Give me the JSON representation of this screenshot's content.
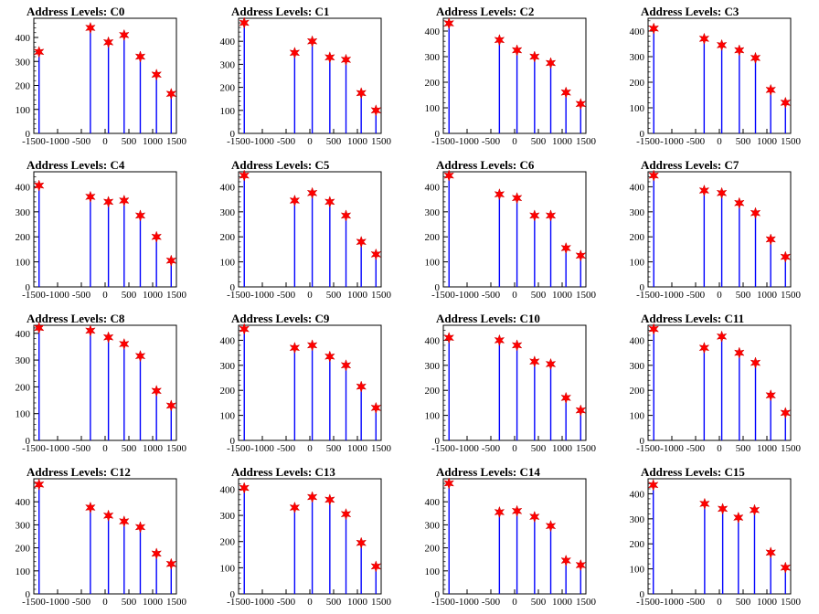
{
  "chart_data": [
    {
      "type": "bar",
      "title": "Address Levels: C0",
      "ylim": [
        0,
        480
      ],
      "yticks": [
        0,
        100,
        200,
        300,
        400
      ],
      "xlim": [
        -1500,
        1500
      ],
      "xticks": [
        -1500,
        -1000,
        -500,
        0,
        500,
        1000,
        1500
      ],
      "xtick_labels": [
        "-1500",
        "-1000",
        "-500",
        "0",
        "500",
        "1000",
        "1500"
      ],
      "x": [
        -1390,
        -310,
        70,
        400,
        740,
        1080,
        1390
      ],
      "peaks": [
        340,
        440,
        380,
        410,
        320,
        245,
        165
      ]
    },
    {
      "type": "bar",
      "title": "Address Levels: C1",
      "ylim": [
        0,
        500
      ],
      "yticks": [
        0,
        100,
        200,
        300,
        400
      ],
      "xlim": [
        -1500,
        1500
      ],
      "xticks": [
        -1500,
        -1000,
        -500,
        0,
        500,
        1000,
        1500
      ],
      "xtick_labels": [
        "-1500",
        "-1000",
        "-500",
        "0",
        "500",
        "1000",
        "1500"
      ],
      "x": [
        -1380,
        -320,
        50,
        420,
        760,
        1080,
        1390
      ],
      "peaks": [
        480,
        350,
        400,
        330,
        320,
        175,
        100
      ]
    },
    {
      "type": "bar",
      "title": "Address Levels: C2",
      "ylim": [
        0,
        450
      ],
      "yticks": [
        0,
        100,
        200,
        300,
        400
      ],
      "xlim": [
        -1500,
        1500
      ],
      "xticks": [
        -1500,
        -1000,
        -500,
        0,
        500,
        1000,
        1500
      ],
      "xtick_labels": [
        "-1500",
        "-1000",
        "-500",
        "0",
        "500",
        "1000",
        "1500"
      ],
      "x": [
        -1380,
        -320,
        50,
        420,
        760,
        1080,
        1390
      ],
      "peaks": [
        430,
        365,
        325,
        300,
        275,
        160,
        115
      ]
    },
    {
      "type": "bar",
      "title": "Address Levels: C3",
      "ylim": [
        0,
        450
      ],
      "yticks": [
        0,
        100,
        200,
        300,
        400
      ],
      "xlim": [
        -1500,
        1500
      ],
      "xticks": [
        -1500,
        -1000,
        -500,
        0,
        500,
        1000,
        1500
      ],
      "xtick_labels": [
        "-1500",
        "-1000",
        "-500",
        "0",
        "500",
        "1000",
        "1500"
      ],
      "x": [
        -1380,
        -320,
        50,
        420,
        760,
        1080,
        1390
      ],
      "peaks": [
        410,
        370,
        345,
        325,
        295,
        170,
        120
      ]
    },
    {
      "type": "bar",
      "title": "Address Levels: C4",
      "ylim": [
        0,
        460
      ],
      "yticks": [
        0,
        100,
        200,
        300,
        400
      ],
      "xlim": [
        -1500,
        1500
      ],
      "xticks": [
        -1500,
        -1000,
        -500,
        0,
        500,
        1000,
        1500
      ],
      "xtick_labels": [
        "-1500",
        "-1000",
        "-500",
        "0",
        "500",
        "1000",
        "1500"
      ],
      "x": [
        -1390,
        -310,
        70,
        400,
        740,
        1080,
        1390
      ],
      "peaks": [
        405,
        360,
        340,
        345,
        285,
        200,
        105
      ]
    },
    {
      "type": "bar",
      "title": "Address Levels: C5",
      "ylim": [
        0,
        460
      ],
      "yticks": [
        0,
        100,
        200,
        300,
        400
      ],
      "xlim": [
        -1500,
        1500
      ],
      "xticks": [
        -1500,
        -1000,
        -500,
        0,
        500,
        1000,
        1500
      ],
      "xtick_labels": [
        "-1500",
        "-1000",
        "-500",
        "0",
        "500",
        "1000",
        "1500"
      ],
      "x": [
        -1380,
        -320,
        50,
        420,
        760,
        1080,
        1390
      ],
      "peaks": [
        445,
        345,
        375,
        340,
        285,
        180,
        130
      ]
    },
    {
      "type": "bar",
      "title": "Address Levels: C6",
      "ylim": [
        0,
        460
      ],
      "yticks": [
        0,
        100,
        200,
        300,
        400
      ],
      "xlim": [
        -1500,
        1500
      ],
      "xticks": [
        -1500,
        -1000,
        -500,
        0,
        500,
        1000,
        1500
      ],
      "xtick_labels": [
        "-1500",
        "-1000",
        "-500",
        "0",
        "500",
        "1000",
        "1500"
      ],
      "x": [
        -1380,
        -320,
        50,
        420,
        760,
        1080,
        1390
      ],
      "peaks": [
        445,
        370,
        355,
        285,
        285,
        155,
        125
      ]
    },
    {
      "type": "bar",
      "title": "Address Levels: C7",
      "ylim": [
        0,
        460
      ],
      "yticks": [
        0,
        100,
        200,
        300,
        400
      ],
      "xlim": [
        -1500,
        1500
      ],
      "xticks": [
        -1500,
        -1000,
        -500,
        0,
        500,
        1000,
        1500
      ],
      "xtick_labels": [
        "-1500",
        "-1000",
        "-500",
        "0",
        "500",
        "1000",
        "1500"
      ],
      "x": [
        -1380,
        -320,
        50,
        420,
        760,
        1080,
        1390
      ],
      "peaks": [
        445,
        385,
        375,
        335,
        295,
        190,
        120
      ]
    },
    {
      "type": "bar",
      "title": "Address Levels: C8",
      "ylim": [
        0,
        430
      ],
      "yticks": [
        0,
        100,
        200,
        300,
        400
      ],
      "xlim": [
        -1500,
        1500
      ],
      "xticks": [
        -1500,
        -1000,
        -500,
        0,
        500,
        1000,
        1500
      ],
      "xtick_labels": [
        "-1500",
        "-1000",
        "-500",
        "0",
        "500",
        "1000",
        "1500"
      ],
      "x": [
        -1390,
        -310,
        70,
        400,
        740,
        1080,
        1390
      ],
      "peaks": [
        420,
        410,
        385,
        360,
        315,
        185,
        130
      ]
    },
    {
      "type": "bar",
      "title": "Address Levels: C9",
      "ylim": [
        0,
        460
      ],
      "yticks": [
        0,
        100,
        200,
        300,
        400
      ],
      "xlim": [
        -1500,
        1500
      ],
      "xticks": [
        -1500,
        -1000,
        -500,
        0,
        500,
        1000,
        1500
      ],
      "xtick_labels": [
        "-1500",
        "-1000",
        "-500",
        "0",
        "500",
        "1000",
        "1500"
      ],
      "x": [
        -1380,
        -320,
        50,
        420,
        760,
        1080,
        1390
      ],
      "peaks": [
        445,
        370,
        380,
        335,
        300,
        215,
        130
      ]
    },
    {
      "type": "bar",
      "title": "Address Levels: C10",
      "ylim": [
        0,
        460
      ],
      "yticks": [
        0,
        100,
        200,
        300,
        400
      ],
      "xlim": [
        -1500,
        1500
      ],
      "xticks": [
        -1500,
        -1000,
        -500,
        0,
        500,
        1000,
        1500
      ],
      "xtick_labels": [
        "-1500",
        "-1000",
        "-500",
        "0",
        "500",
        "1000",
        "1500"
      ],
      "x": [
        -1380,
        -320,
        50,
        420,
        760,
        1080,
        1390
      ],
      "peaks": [
        410,
        400,
        380,
        315,
        305,
        170,
        120
      ]
    },
    {
      "type": "bar",
      "title": "Address Levels: C11",
      "ylim": [
        0,
        460
      ],
      "yticks": [
        0,
        100,
        200,
        300,
        400
      ],
      "xlim": [
        -1500,
        1500
      ],
      "xticks": [
        -1500,
        -1000,
        -500,
        0,
        500,
        1000,
        1500
      ],
      "xtick_labels": [
        "-1500",
        "-1000",
        "-500",
        "0",
        "500",
        "1000",
        "1500"
      ],
      "x": [
        -1380,
        -320,
        50,
        420,
        760,
        1080,
        1390
      ],
      "peaks": [
        445,
        370,
        415,
        350,
        310,
        180,
        110
      ]
    },
    {
      "type": "bar",
      "title": "Address Levels: C12",
      "ylim": [
        0,
        500
      ],
      "yticks": [
        0,
        100,
        200,
        300,
        400
      ],
      "xlim": [
        -1500,
        1500
      ],
      "xticks": [
        -1500,
        -1000,
        -500,
        0,
        500,
        1000,
        1500
      ],
      "xtick_labels": [
        "-1500",
        "-1000",
        "-500",
        "0",
        "500",
        "1000",
        "1500"
      ],
      "x": [
        -1390,
        -310,
        70,
        400,
        740,
        1080,
        1390
      ],
      "peaks": [
        475,
        375,
        340,
        315,
        290,
        175,
        130
      ]
    },
    {
      "type": "bar",
      "title": "Address Levels: C13",
      "ylim": [
        0,
        440
      ],
      "yticks": [
        0,
        100,
        200,
        300,
        400
      ],
      "xlim": [
        -1500,
        1500
      ],
      "xticks": [
        -1500,
        -1000,
        -500,
        0,
        500,
        1000,
        1500
      ],
      "xtick_labels": [
        "-1500",
        "-1000",
        "-500",
        "0",
        "500",
        "1000",
        "1500"
      ],
      "x": [
        -1380,
        -320,
        50,
        420,
        760,
        1080,
        1390
      ],
      "peaks": [
        405,
        330,
        370,
        360,
        305,
        195,
        105
      ]
    },
    {
      "type": "bar",
      "title": "Address Levels: C14",
      "ylim": [
        0,
        500
      ],
      "yticks": [
        0,
        100,
        200,
        300,
        400
      ],
      "xlim": [
        -1500,
        1500
      ],
      "xticks": [
        -1500,
        -1000,
        -500,
        0,
        500,
        1000,
        1500
      ],
      "xtick_labels": [
        "-1500",
        "-1000",
        "-500",
        "0",
        "500",
        "1000",
        "1500"
      ],
      "x": [
        -1380,
        -320,
        50,
        420,
        760,
        1080,
        1390
      ],
      "peaks": [
        480,
        355,
        360,
        335,
        295,
        145,
        125
      ]
    },
    {
      "type": "bar",
      "title": "Address Levels: C15",
      "ylim": [
        0,
        460
      ],
      "yticks": [
        0,
        100,
        200,
        300,
        400
      ],
      "xlim": [
        -1500,
        1500
      ],
      "xticks": [
        -1500,
        -1000,
        -500,
        0,
        500,
        1000,
        1500
      ],
      "xtick_labels": [
        "-1500",
        "-1000",
        "-500",
        "0",
        "500",
        "1000",
        "1500"
      ],
      "x": [
        -1390,
        -310,
        70,
        400,
        740,
        1080,
        1390
      ],
      "peaks": [
        435,
        360,
        340,
        305,
        335,
        165,
        105
      ]
    }
  ],
  "colors": {
    "bars": "#0000ff",
    "markers": "#ff0000",
    "axis": "#000000",
    "background": "#ffffff"
  },
  "marker_shape": "star"
}
